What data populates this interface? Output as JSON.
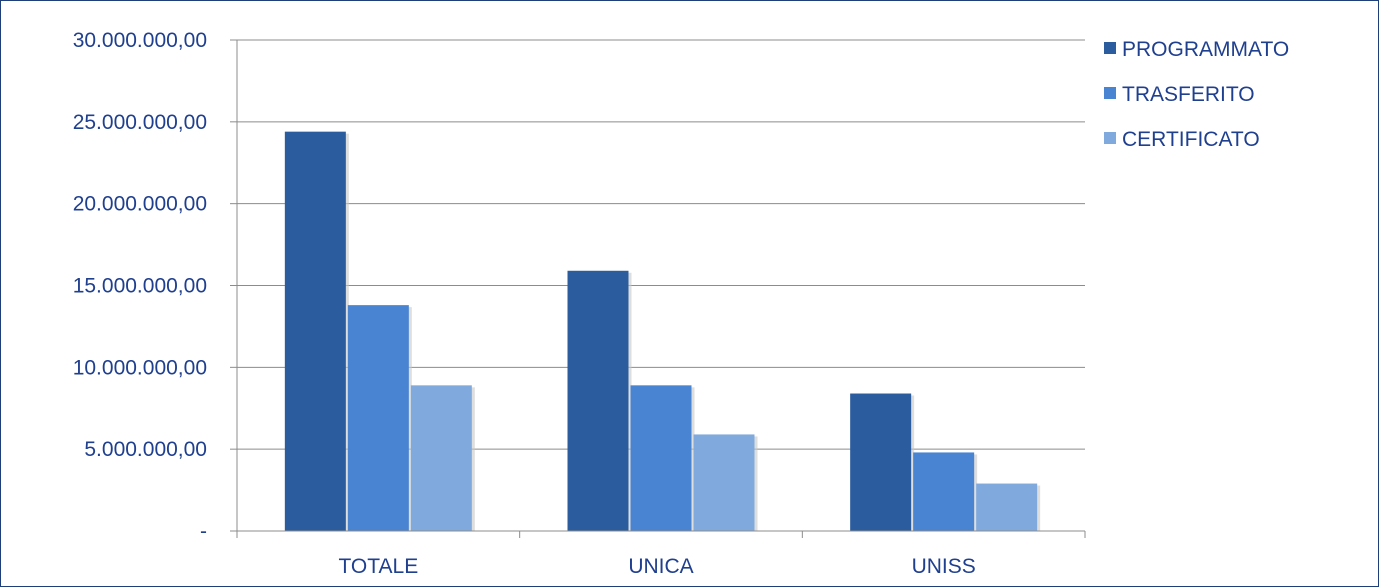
{
  "chart_data": {
    "type": "bar",
    "title": "",
    "xlabel": "",
    "ylabel": "",
    "categories": [
      "TOTALE",
      "UNICA",
      "UNISS"
    ],
    "series": [
      {
        "name": "PROGRAMMATO",
        "color": "#2a5c9e",
        "values": [
          24400000,
          15900000,
          8400000
        ]
      },
      {
        "name": "TRASFERITO",
        "color": "#4884d2",
        "values": [
          13800000,
          8900000,
          4800000
        ]
      },
      {
        "name": "CERTIFICATO",
        "color": "#80aade",
        "values": [
          8900000,
          5900000,
          2900000
        ]
      }
    ],
    "ylim": [
      0,
      30000000
    ],
    "yticks": [
      0,
      5000000,
      10000000,
      15000000,
      20000000,
      25000000,
      30000000
    ],
    "ytick_labels": [
      "-",
      "5.000.000,00",
      "10.000.000,00",
      "15.000.000,00",
      "20.000.000,00",
      "25.000.000,00",
      "30.000.000,00"
    ],
    "grid": true,
    "legend": "right"
  }
}
